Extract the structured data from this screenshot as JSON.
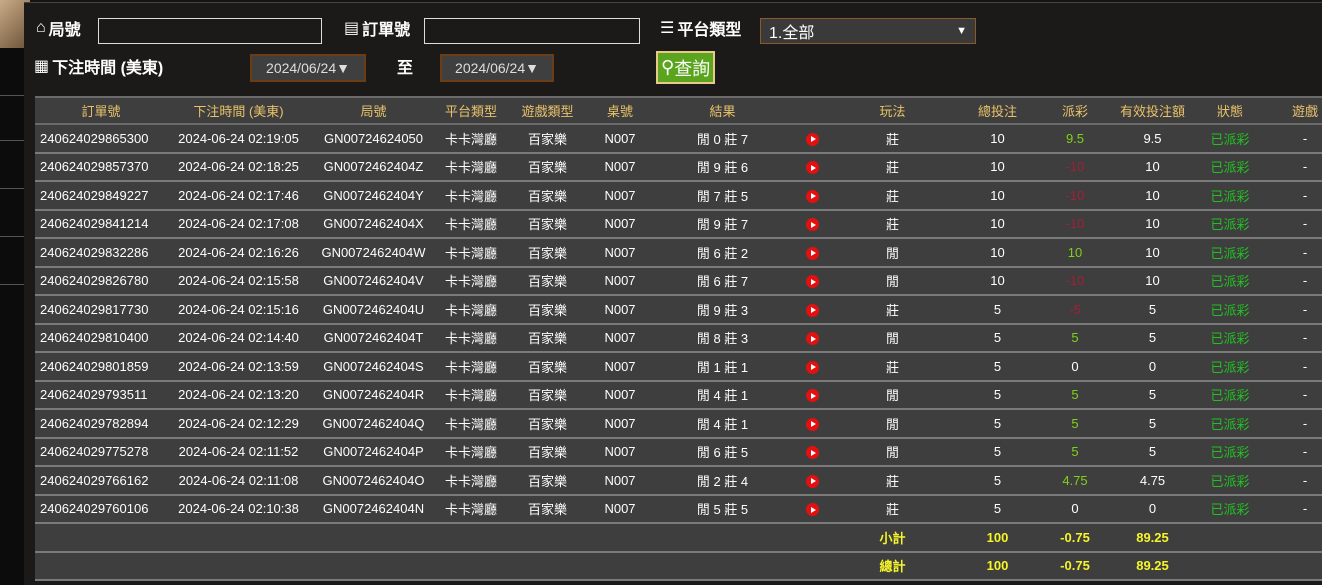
{
  "filters": {
    "round_label": "局號",
    "round_value": "",
    "order_label": "訂單號",
    "order_value": "",
    "platform_label": "平台類型",
    "platform_value": "1.全部",
    "time_label": "下注時間 (美東)",
    "date_from": "2024/06/24▼",
    "to_label": "至",
    "date_to": "2024/06/24▼",
    "search_label": "查詢"
  },
  "headers": [
    "訂單號",
    "下注時間 (美東)",
    "局號",
    "平台類型",
    "遊戲類型",
    "桌號",
    "結果",
    "",
    "玩法",
    "總投注",
    "派彩",
    "有效投注額",
    "狀態",
    "遊戲"
  ],
  "rows": [
    [
      "240624029865300",
      "2024-06-24 02:19:05",
      "GN00724624050",
      "卡卡灣廳",
      "百家樂",
      "N007",
      "閒 0 莊 7",
      "莊",
      "10",
      "9.5",
      "9.5",
      "已派彩",
      "-"
    ],
    [
      "240624029857370",
      "2024-06-24 02:18:25",
      "GN0072462404Z",
      "卡卡灣廳",
      "百家樂",
      "N007",
      "閒 9 莊 6",
      "莊",
      "10",
      "-10",
      "10",
      "已派彩",
      "-"
    ],
    [
      "240624029849227",
      "2024-06-24 02:17:46",
      "GN0072462404Y",
      "卡卡灣廳",
      "百家樂",
      "N007",
      "閒 7 莊 5",
      "莊",
      "10",
      "-10",
      "10",
      "已派彩",
      "-"
    ],
    [
      "240624029841214",
      "2024-06-24 02:17:08",
      "GN0072462404X",
      "卡卡灣廳",
      "百家樂",
      "N007",
      "閒 9 莊 7",
      "莊",
      "10",
      "-10",
      "10",
      "已派彩",
      "-"
    ],
    [
      "240624029832286",
      "2024-06-24 02:16:26",
      "GN0072462404W",
      "卡卡灣廳",
      "百家樂",
      "N007",
      "閒 6 莊 2",
      "閒",
      "10",
      "10",
      "10",
      "已派彩",
      "-"
    ],
    [
      "240624029826780",
      "2024-06-24 02:15:58",
      "GN0072462404V",
      "卡卡灣廳",
      "百家樂",
      "N007",
      "閒 6 莊 7",
      "閒",
      "10",
      "-10",
      "10",
      "已派彩",
      "-"
    ],
    [
      "240624029817730",
      "2024-06-24 02:15:16",
      "GN0072462404U",
      "卡卡灣廳",
      "百家樂",
      "N007",
      "閒 9 莊 3",
      "莊",
      "5",
      "-5",
      "5",
      "已派彩",
      "-"
    ],
    [
      "240624029810400",
      "2024-06-24 02:14:40",
      "GN0072462404T",
      "卡卡灣廳",
      "百家樂",
      "N007",
      "閒 8 莊 3",
      "閒",
      "5",
      "5",
      "5",
      "已派彩",
      "-"
    ],
    [
      "240624029801859",
      "2024-06-24 02:13:59",
      "GN0072462404S",
      "卡卡灣廳",
      "百家樂",
      "N007",
      "閒 1 莊 1",
      "莊",
      "5",
      "0",
      "0",
      "已派彩",
      "-"
    ],
    [
      "240624029793511",
      "2024-06-24 02:13:20",
      "GN0072462404R",
      "卡卡灣廳",
      "百家樂",
      "N007",
      "閒 4 莊 1",
      "閒",
      "5",
      "5",
      "5",
      "已派彩",
      "-"
    ],
    [
      "240624029782894",
      "2024-06-24 02:12:29",
      "GN0072462404Q",
      "卡卡灣廳",
      "百家樂",
      "N007",
      "閒 4 莊 1",
      "閒",
      "5",
      "5",
      "5",
      "已派彩",
      "-"
    ],
    [
      "240624029775278",
      "2024-06-24 02:11:52",
      "GN0072462404P",
      "卡卡灣廳",
      "百家樂",
      "N007",
      "閒 6 莊 5",
      "閒",
      "5",
      "5",
      "5",
      "已派彩",
      "-"
    ],
    [
      "240624029766162",
      "2024-06-24 02:11:08",
      "GN0072462404O",
      "卡卡灣廳",
      "百家樂",
      "N007",
      "閒 2 莊 4",
      "莊",
      "5",
      "4.75",
      "4.75",
      "已派彩",
      "-"
    ],
    [
      "240624029760106",
      "2024-06-24 02:10:38",
      "GN0072462404N",
      "卡卡灣廳",
      "百家樂",
      "N007",
      "閒 5 莊 5",
      "莊",
      "5",
      "0",
      "0",
      "已派彩",
      "-"
    ]
  ],
  "subtotal": {
    "label": "小計",
    "bet": "100",
    "payout": "-0.75",
    "valid": "89.25"
  },
  "total": {
    "label": "總計",
    "bet": "100",
    "payout": "-0.75",
    "valid": "89.25"
  },
  "icons": {
    "result": "play-video-icon"
  },
  "colors": {
    "positive": "#7fd11a",
    "negative": "#a0203a",
    "status": "#22c022",
    "header": "#e8c26a",
    "sum": "#f5f52a",
    "search_button": "#5aa51d"
  }
}
